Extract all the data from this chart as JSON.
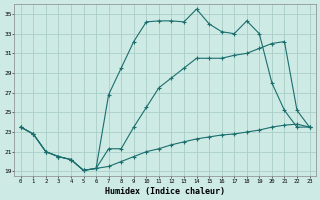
{
  "xlabel": "Humidex (Indice chaleur)",
  "background_color": "#ceeae4",
  "grid_color": "#aacfc8",
  "line_color": "#1a6e6e",
  "xlim": [
    -0.5,
    23.5
  ],
  "ylim": [
    18.5,
    36.0
  ],
  "xticks": [
    0,
    1,
    2,
    3,
    4,
    5,
    6,
    7,
    8,
    9,
    10,
    11,
    12,
    13,
    14,
    15,
    16,
    17,
    18,
    19,
    20,
    21,
    22,
    23
  ],
  "yticks": [
    19,
    21,
    23,
    25,
    27,
    29,
    31,
    33,
    35
  ],
  "line1_x": [
    0,
    1,
    2,
    3,
    4,
    5,
    6,
    7,
    8,
    9,
    10,
    11,
    12,
    13,
    14,
    15,
    16,
    17,
    18,
    19,
    20,
    21,
    22,
    23
  ],
  "line1_y": [
    23.5,
    22.8,
    21.0,
    20.5,
    20.2,
    19.1,
    19.3,
    26.8,
    29.5,
    32.2,
    34.2,
    34.3,
    34.3,
    34.2,
    35.5,
    34.0,
    33.2,
    33.0,
    34.3,
    33.0,
    28.0,
    25.2,
    23.5,
    23.5
  ],
  "line2_x": [
    0,
    1,
    2,
    3,
    4,
    5,
    6,
    7,
    8,
    9,
    10,
    11,
    12,
    13,
    14,
    15,
    16,
    17,
    18,
    19,
    20,
    21,
    22,
    23
  ],
  "line2_y": [
    23.5,
    22.8,
    21.0,
    20.5,
    20.2,
    19.1,
    19.3,
    21.3,
    21.3,
    23.5,
    25.5,
    27.5,
    28.5,
    29.5,
    30.5,
    30.5,
    30.5,
    30.8,
    31.0,
    31.5,
    32.0,
    32.2,
    25.2,
    23.5
  ],
  "line3_x": [
    0,
    1,
    2,
    3,
    4,
    5,
    6,
    7,
    8,
    9,
    10,
    11,
    12,
    13,
    14,
    15,
    16,
    17,
    18,
    19,
    20,
    21,
    22,
    23
  ],
  "line3_y": [
    23.5,
    22.8,
    21.0,
    20.5,
    20.2,
    19.1,
    19.3,
    19.5,
    20.0,
    20.5,
    21.0,
    21.3,
    21.7,
    22.0,
    22.3,
    22.5,
    22.7,
    22.8,
    23.0,
    23.2,
    23.5,
    23.7,
    23.8,
    23.5
  ]
}
